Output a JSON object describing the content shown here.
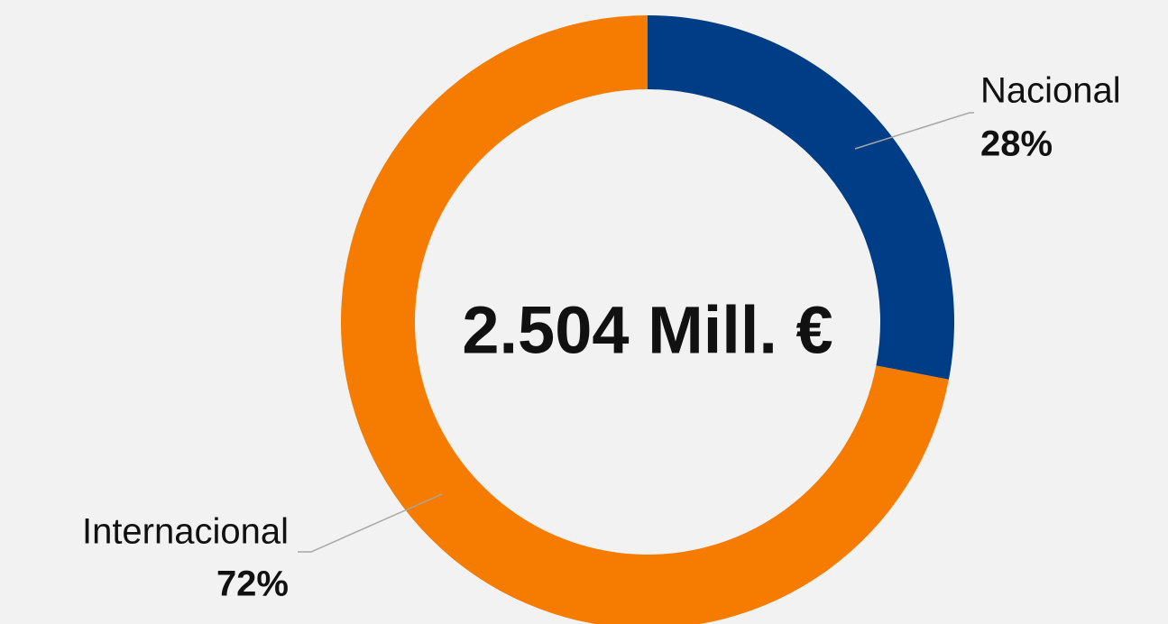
{
  "chart_data": {
    "type": "pie",
    "donut": true,
    "center_label": "2.504 Mill. €",
    "categories": [
      "Nacional",
      "Internacional"
    ],
    "values": [
      28,
      72
    ],
    "value_labels": [
      "28%",
      "72%"
    ],
    "colors": [
      "#003d87",
      "#f57c00"
    ]
  }
}
